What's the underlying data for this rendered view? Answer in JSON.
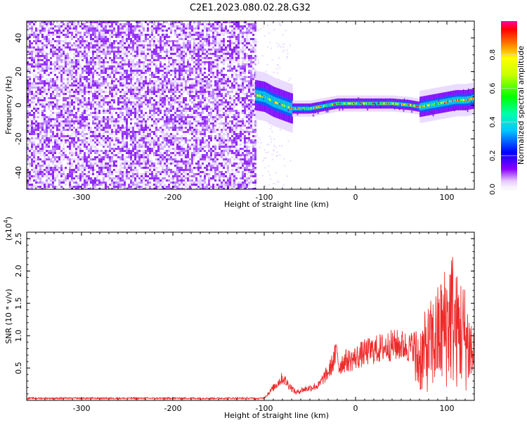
{
  "chart_data": [
    {
      "type": "heatmap",
      "title": "C2E1.2023.080.02.28.G32",
      "xlabel": "Height of straight line (km)",
      "ylabel": "Frequency (Hz)",
      "xlim": [
        -360,
        130
      ],
      "ylim": [
        -50,
        50
      ],
      "x_ticks": [
        "-300",
        "-200",
        "-100",
        "0",
        "100"
      ],
      "y_ticks": [
        "40",
        "20",
        "0",
        "-20",
        "-40"
      ],
      "colorbar": {
        "label": "Normalized spectral amplitude",
        "range": [
          0,
          1
        ],
        "ticks": [
          "0.0",
          "0.2",
          "0.4",
          "0.6",
          "0.8"
        ]
      },
      "annotations": {
        "noise_region_x": [
          -360,
          -110
        ],
        "signal_region_x": [
          -110,
          130
        ],
        "signal_center_frequency": [
          [
            -110,
            6
          ],
          [
            -100,
            5
          ],
          [
            -90,
            2
          ],
          [
            -80,
            0
          ],
          [
            -70,
            -2
          ],
          [
            -60,
            -2
          ],
          [
            -50,
            -2
          ],
          [
            -40,
            -1
          ],
          [
            -30,
            0
          ],
          [
            -20,
            1
          ],
          [
            -10,
            1
          ],
          [
            0,
            1
          ],
          [
            20,
            1
          ],
          [
            40,
            1
          ],
          [
            60,
            0
          ],
          [
            70,
            -1
          ],
          [
            80,
            0
          ],
          [
            90,
            1
          ],
          [
            100,
            2
          ],
          [
            110,
            3
          ],
          [
            120,
            3
          ],
          [
            130,
            4
          ]
        ]
      },
      "grid": false,
      "colormap": "rainbow"
    },
    {
      "type": "line",
      "title": "",
      "xlabel": "Height of straight line (km)",
      "ylabel": "SNR (10 * v/v)",
      "y_multiplier": "(x10",
      "y_multiplier_exp": "4",
      "y_multiplier_close": ")",
      "xlim": [
        -360,
        130
      ],
      "ylim": [
        0,
        2.6
      ],
      "x_ticks": [
        "-300",
        "-200",
        "-100",
        "0",
        "100"
      ],
      "y_ticks": [
        "0.5",
        "1.0",
        "1.5",
        "2.0",
        "2.5"
      ],
      "line_color": "#ee2a2a",
      "grid": false,
      "series": [
        {
          "name": "",
          "envelope": [
            [
              -360,
              0.03
            ],
            [
              -300,
              0.03
            ],
            [
              -200,
              0.03
            ],
            [
              -110,
              0.03
            ],
            [
              -100,
              0.05
            ],
            [
              -95,
              0.15
            ],
            [
              -90,
              0.25
            ],
            [
              -85,
              0.35
            ],
            [
              -80,
              0.45
            ],
            [
              -75,
              0.35
            ],
            [
              -70,
              0.25
            ],
            [
              -65,
              0.15
            ],
            [
              -60,
              0.2
            ],
            [
              -50,
              0.25
            ],
            [
              -40,
              0.3
            ],
            [
              -35,
              0.45
            ],
            [
              -30,
              0.55
            ],
            [
              -25,
              0.75
            ],
            [
              -22,
              0.9
            ],
            [
              -20,
              1.0
            ],
            [
              -18,
              0.65
            ],
            [
              -15,
              0.75
            ],
            [
              -10,
              0.8
            ],
            [
              -5,
              0.8
            ],
            [
              0,
              0.85
            ],
            [
              10,
              0.95
            ],
            [
              20,
              1.0
            ],
            [
              30,
              1.05
            ],
            [
              40,
              1.1
            ],
            [
              50,
              1.1
            ],
            [
              60,
              1.05
            ],
            [
              70,
              1.2
            ],
            [
              80,
              1.5
            ],
            [
              90,
              1.8
            ],
            [
              100,
              2.2
            ],
            [
              105,
              2.5
            ],
            [
              110,
              2.0
            ],
            [
              115,
              2.0
            ],
            [
              120,
              1.8
            ],
            [
              125,
              1.5
            ],
            [
              130,
              1.2
            ]
          ]
        }
      ]
    }
  ]
}
